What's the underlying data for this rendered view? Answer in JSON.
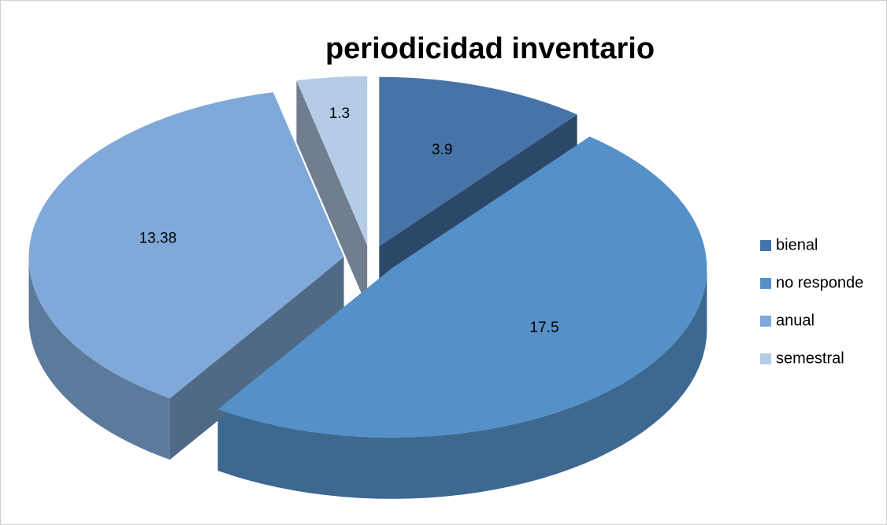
{
  "chart_data": {
    "type": "pie",
    "title": "periodicidad inventario",
    "categories": [
      "bienal",
      "no responde",
      "anual",
      "semestral"
    ],
    "values": [
      3.9,
      17.5,
      13.38,
      1.3
    ],
    "colors": [
      "#4674a8",
      "#5590c8",
      "#80a9d9",
      "#b5cce7"
    ],
    "legend": "right"
  }
}
